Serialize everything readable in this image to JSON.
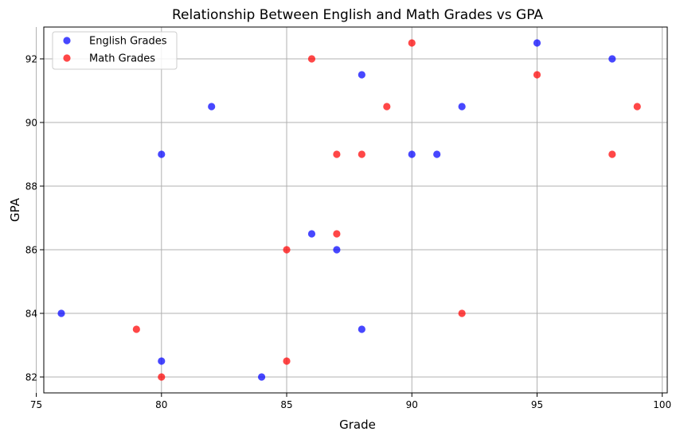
{
  "chart_data": {
    "type": "scatter",
    "title": "Relationship Between English and Math Grades vs GPA",
    "xlabel": "Grade",
    "ylabel": "GPA",
    "xlim": [
      75.3,
      100.2
    ],
    "ylim": [
      81.5,
      93.0
    ],
    "xticks": [
      75,
      80,
      85,
      90,
      95,
      100
    ],
    "yticks": [
      82,
      84,
      86,
      88,
      90,
      92
    ],
    "grid": true,
    "legend_position": "top-left",
    "series": [
      {
        "name": "English Grades",
        "color": "#0000ff",
        "points": [
          {
            "x": 76,
            "y": 84.0
          },
          {
            "x": 80,
            "y": 82.5
          },
          {
            "x": 80,
            "y": 89.0
          },
          {
            "x": 82,
            "y": 90.5
          },
          {
            "x": 84,
            "y": 82.0
          },
          {
            "x": 86,
            "y": 86.5
          },
          {
            "x": 87,
            "y": 86.0
          },
          {
            "x": 88,
            "y": 83.5
          },
          {
            "x": 88,
            "y": 91.5
          },
          {
            "x": 90,
            "y": 89.0
          },
          {
            "x": 91,
            "y": 89.0
          },
          {
            "x": 92,
            "y": 90.5
          },
          {
            "x": 95,
            "y": 92.5
          },
          {
            "x": 98,
            "y": 92.0
          }
        ]
      },
      {
        "name": "Math Grades",
        "color": "#ff0000",
        "points": [
          {
            "x": 79,
            "y": 83.5
          },
          {
            "x": 80,
            "y": 82.0
          },
          {
            "x": 85,
            "y": 82.5
          },
          {
            "x": 85,
            "y": 86.0
          },
          {
            "x": 86,
            "y": 92.0
          },
          {
            "x": 87,
            "y": 89.0
          },
          {
            "x": 87,
            "y": 86.5
          },
          {
            "x": 88,
            "y": 89.0
          },
          {
            "x": 89,
            "y": 90.5
          },
          {
            "x": 90,
            "y": 92.5
          },
          {
            "x": 92,
            "y": 84.0
          },
          {
            "x": 95,
            "y": 91.5
          },
          {
            "x": 98,
            "y": 89.0
          },
          {
            "x": 99,
            "y": 90.5
          }
        ]
      }
    ]
  }
}
